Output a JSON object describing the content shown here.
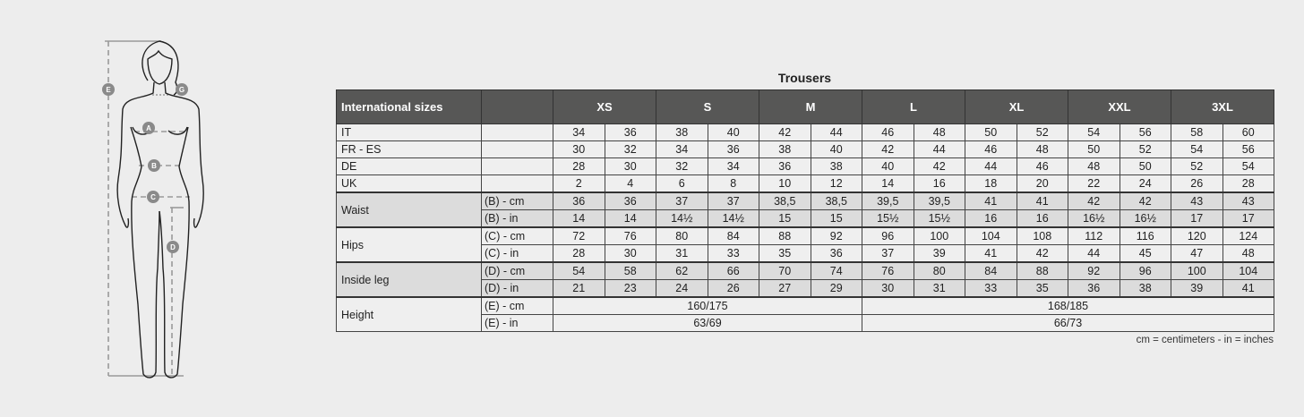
{
  "title": "Trousers",
  "figure": {
    "labels": [
      "E",
      "G",
      "A",
      "B",
      "C",
      "D"
    ]
  },
  "table": {
    "header_label": "International sizes",
    "sizes": [
      "XS",
      "S",
      "M",
      "L",
      "XL",
      "XXL",
      "3XL"
    ],
    "country_rows": [
      {
        "label": "IT",
        "values": [
          "34",
          "36",
          "38",
          "40",
          "42",
          "44",
          "46",
          "48",
          "50",
          "52",
          "54",
          "56",
          "58",
          "60"
        ]
      },
      {
        "label": "FR - ES",
        "values": [
          "30",
          "32",
          "34",
          "36",
          "38",
          "40",
          "42",
          "44",
          "46",
          "48",
          "50",
          "52",
          "54",
          "56"
        ]
      },
      {
        "label": "DE",
        "values": [
          "28",
          "30",
          "32",
          "34",
          "36",
          "38",
          "40",
          "42",
          "44",
          "46",
          "48",
          "50",
          "52",
          "54"
        ]
      },
      {
        "label": "UK",
        "values": [
          "2",
          "4",
          "6",
          "8",
          "10",
          "12",
          "14",
          "16",
          "18",
          "20",
          "22",
          "24",
          "26",
          "28"
        ]
      }
    ],
    "measure_groups": [
      {
        "label": "Waist",
        "shade": "dark",
        "rows": [
          {
            "unit": "(B) - cm",
            "values": [
              "36",
              "36",
              "37",
              "37",
              "38,5",
              "38,5",
              "39,5",
              "39,5",
              "41",
              "41",
              "42",
              "42",
              "43",
              "43"
            ]
          },
          {
            "unit": "(B) - in",
            "values": [
              "14",
              "14",
              "14½",
              "14½",
              "15",
              "15",
              "15½",
              "15½",
              "16",
              "16",
              "16½",
              "16½",
              "17",
              "17"
            ]
          }
        ]
      },
      {
        "label": "Hips",
        "shade": "light",
        "rows": [
          {
            "unit": "(C) - cm",
            "values": [
              "72",
              "76",
              "80",
              "84",
              "88",
              "92",
              "96",
              "100",
              "104",
              "108",
              "112",
              "116",
              "120",
              "124"
            ]
          },
          {
            "unit": "(C) - in",
            "values": [
              "28",
              "30",
              "31",
              "33",
              "35",
              "36",
              "37",
              "39",
              "41",
              "42",
              "44",
              "45",
              "47",
              "48"
            ]
          }
        ]
      },
      {
        "label": "Inside leg",
        "shade": "dark",
        "rows": [
          {
            "unit": "(D) - cm",
            "values": [
              "54",
              "58",
              "62",
              "66",
              "70",
              "74",
              "76",
              "80",
              "84",
              "88",
              "92",
              "96",
              "100",
              "104"
            ]
          },
          {
            "unit": "(D) - in",
            "values": [
              "21",
              "23",
              "24",
              "26",
              "27",
              "29",
              "30",
              "31",
              "33",
              "35",
              "36",
              "38",
              "39",
              "41"
            ]
          }
        ]
      }
    ],
    "height_group": {
      "label": "Height",
      "rows": [
        {
          "unit": "(E) - cm",
          "values": [
            "160/175",
            "168/185"
          ]
        },
        {
          "unit": "(E) - in",
          "values": [
            "63/69",
            "66/73"
          ]
        }
      ]
    }
  },
  "note": "cm = centimeters - in = inches",
  "colors": {
    "header_bg": "#575756",
    "row_light": "#efefef",
    "row_dark": "#dcdcdc",
    "figure_marker": "#8a8a8a"
  }
}
